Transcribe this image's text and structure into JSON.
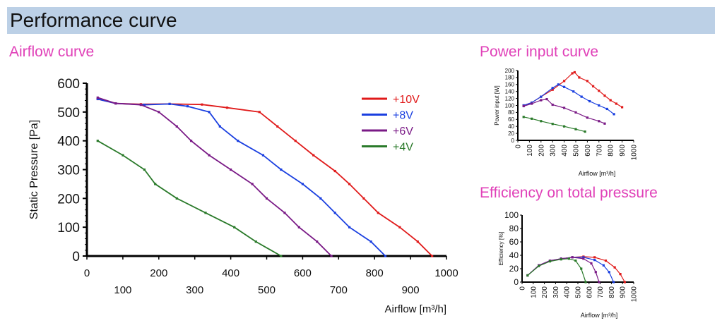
{
  "page": {
    "title": "Performance curve",
    "colors": {
      "header_bg": "#bcd0e6",
      "section_title": "#e040b8",
      "red": "#e01a1a",
      "blue": "#1a3fe0",
      "purple": "#7a1a86",
      "green": "#2a7a2a"
    }
  },
  "sections": {
    "airflow": "Airflow curve",
    "power": "Power input curve",
    "efficiency": "Efficiency on total pressure"
  },
  "chart_data": [
    {
      "id": "airflow",
      "type": "line",
      "xlabel": "Airflow [m³/h]",
      "ylabel": "Static Pressure [Pa]",
      "xlim": [
        0,
        1000
      ],
      "ylim": [
        0,
        600
      ],
      "x_ticks_major": [
        "0",
        "200",
        "400",
        "600",
        "800",
        "1000"
      ],
      "x_ticks_minor": [
        "100",
        "300",
        "500",
        "700",
        "900"
      ],
      "y_ticks": [
        "0",
        "100",
        "200",
        "300",
        "400",
        "500",
        "600"
      ],
      "legend_position": "top-right",
      "series": [
        {
          "name": "+10V",
          "color": "#e01a1a",
          "points": [
            [
              30,
              545
            ],
            [
              80,
              530
            ],
            [
              150,
              527
            ],
            [
              230,
              528
            ],
            [
              320,
              526
            ],
            [
              390,
              515
            ],
            [
              480,
              500
            ],
            [
              530,
              450
            ],
            [
              580,
              400
            ],
            [
              630,
              350
            ],
            [
              690,
              295
            ],
            [
              730,
              250
            ],
            [
              770,
              200
            ],
            [
              810,
              150
            ],
            [
              870,
              100
            ],
            [
              920,
              50
            ],
            [
              960,
              0
            ]
          ]
        },
        {
          "name": "+8V",
          "color": "#1a3fe0",
          "points": [
            [
              30,
              545
            ],
            [
              80,
              530
            ],
            [
              160,
              525
            ],
            [
              230,
              528
            ],
            [
              280,
              520
            ],
            [
              340,
              500
            ],
            [
              370,
              450
            ],
            [
              420,
              400
            ],
            [
              490,
              350
            ],
            [
              540,
              300
            ],
            [
              600,
              250
            ],
            [
              650,
              200
            ],
            [
              690,
              150
            ],
            [
              730,
              100
            ],
            [
              790,
              50
            ],
            [
              830,
              0
            ]
          ]
        },
        {
          "name": "+6V",
          "color": "#7a1a86",
          "points": [
            [
              30,
              550
            ],
            [
              80,
              530
            ],
            [
              150,
              525
            ],
            [
              200,
              500
            ],
            [
              250,
              450
            ],
            [
              290,
              400
            ],
            [
              340,
              350
            ],
            [
              400,
              300
            ],
            [
              460,
              250
            ],
            [
              500,
              200
            ],
            [
              550,
              150
            ],
            [
              590,
              100
            ],
            [
              640,
              50
            ],
            [
              680,
              0
            ]
          ]
        },
        {
          "name": "+4V",
          "color": "#2a7a2a",
          "points": [
            [
              30,
              400
            ],
            [
              100,
              350
            ],
            [
              160,
              300
            ],
            [
              190,
              250
            ],
            [
              250,
              200
            ],
            [
              330,
              150
            ],
            [
              410,
              100
            ],
            [
              470,
              50
            ],
            [
              540,
              0
            ]
          ]
        }
      ]
    },
    {
      "id": "power",
      "type": "line",
      "xlabel": "Airflow [m³/h]",
      "ylabel": "Power input [W]",
      "xlim": [
        0,
        1000
      ],
      "ylim": [
        0,
        200
      ],
      "x_ticks": [
        "0",
        "100",
        "200",
        "300",
        "400",
        "500",
        "600",
        "700",
        "800",
        "900",
        "1000"
      ],
      "y_ticks": [
        "0",
        "20",
        "40",
        "60",
        "80",
        "100",
        "120",
        "140",
        "160",
        "180",
        "200"
      ],
      "series": [
        {
          "name": "+10V",
          "color": "#e01a1a",
          "points": [
            [
              50,
              100
            ],
            [
              120,
              108
            ],
            [
              200,
              125
            ],
            [
              300,
              145
            ],
            [
              400,
              170
            ],
            [
              470,
              192
            ],
            [
              490,
              195
            ],
            [
              530,
              180
            ],
            [
              600,
              170
            ],
            [
              650,
              155
            ],
            [
              700,
              142
            ],
            [
              750,
              128
            ],
            [
              800,
              115
            ],
            [
              850,
              105
            ],
            [
              900,
              95
            ]
          ]
        },
        {
          "name": "+8V",
          "color": "#1a3fe0",
          "points": [
            [
              50,
              100
            ],
            [
              120,
              108
            ],
            [
              200,
              125
            ],
            [
              300,
              150
            ],
            [
              350,
              160
            ],
            [
              400,
              153
            ],
            [
              480,
              140
            ],
            [
              550,
              125
            ],
            [
              620,
              112
            ],
            [
              700,
              100
            ],
            [
              770,
              90
            ],
            [
              830,
              75
            ]
          ]
        },
        {
          "name": "+6V",
          "color": "#7a1a86",
          "points": [
            [
              50,
              98
            ],
            [
              120,
              105
            ],
            [
              200,
              115
            ],
            [
              250,
              118
            ],
            [
              300,
              102
            ],
            [
              400,
              93
            ],
            [
              500,
              80
            ],
            [
              600,
              65
            ],
            [
              700,
              55
            ],
            [
              750,
              48
            ]
          ]
        },
        {
          "name": "+4V",
          "color": "#2a7a2a",
          "points": [
            [
              50,
              67
            ],
            [
              120,
              62
            ],
            [
              200,
              55
            ],
            [
              300,
              47
            ],
            [
              400,
              40
            ],
            [
              500,
              32
            ],
            [
              580,
              25
            ]
          ]
        }
      ]
    },
    {
      "id": "efficiency",
      "type": "line",
      "xlabel": "Airflow [m³/h]",
      "ylabel": "Efficiency [%]",
      "xlim": [
        0,
        1000
      ],
      "ylim": [
        0,
        100
      ],
      "x_ticks": [
        "0",
        "100",
        "200",
        "300",
        "400",
        "500",
        "600",
        "700",
        "800",
        "900",
        "1000"
      ],
      "y_ticks": [
        "0",
        "20",
        "40",
        "60",
        "80",
        "100"
      ],
      "series": [
        {
          "name": "+10V",
          "color": "#e01a1a",
          "points": [
            [
              50,
              10
            ],
            [
              150,
              25
            ],
            [
              250,
              32
            ],
            [
              350,
              35
            ],
            [
              450,
              37
            ],
            [
              550,
              38
            ],
            [
              650,
              37
            ],
            [
              750,
              32
            ],
            [
              830,
              22
            ],
            [
              880,
              12
            ],
            [
              920,
              0
            ]
          ]
        },
        {
          "name": "+8V",
          "color": "#1a3fe0",
          "points": [
            [
              50,
              10
            ],
            [
              150,
              25
            ],
            [
              250,
              32
            ],
            [
              350,
              35
            ],
            [
              450,
              37
            ],
            [
              550,
              37
            ],
            [
              650,
              33
            ],
            [
              730,
              25
            ],
            [
              780,
              15
            ],
            [
              820,
              0
            ]
          ]
        },
        {
          "name": "+6V",
          "color": "#7a1a86",
          "points": [
            [
              50,
              10
            ],
            [
              150,
              25
            ],
            [
              250,
              32
            ],
            [
              350,
              35
            ],
            [
              450,
              37
            ],
            [
              550,
              35
            ],
            [
              620,
              28
            ],
            [
              660,
              15
            ],
            [
              690,
              0
            ]
          ]
        },
        {
          "name": "+4V",
          "color": "#2a7a2a",
          "points": [
            [
              50,
              10
            ],
            [
              150,
              24
            ],
            [
              250,
              31
            ],
            [
              350,
              34
            ],
            [
              420,
              35
            ],
            [
              480,
              32
            ],
            [
              530,
              20
            ],
            [
              570,
              0
            ]
          ]
        }
      ]
    }
  ]
}
